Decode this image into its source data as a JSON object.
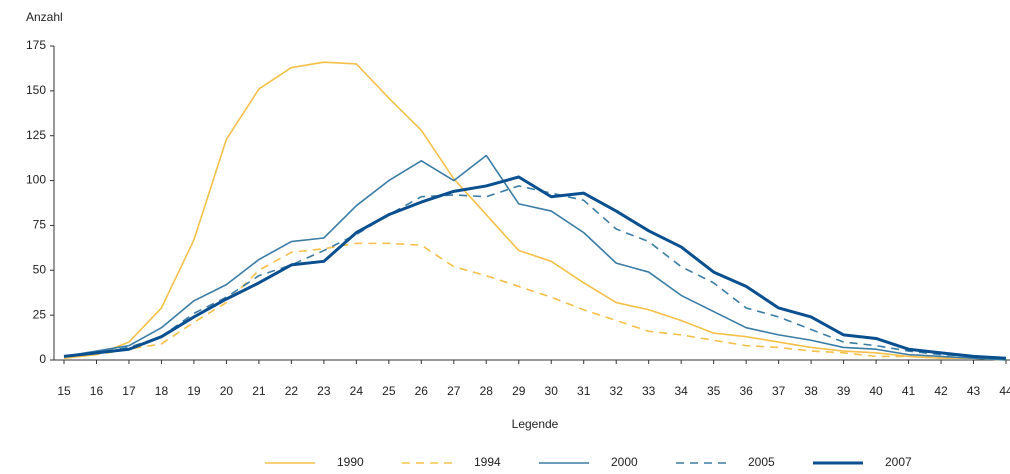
{
  "chart_data": {
    "type": "line",
    "y_label": "Anzahl",
    "x_label": "Legende",
    "categories": [
      "15",
      "16",
      "17",
      "18",
      "19",
      "20",
      "21",
      "22",
      "23",
      "24",
      "25",
      "26",
      "27",
      "28",
      "29",
      "30",
      "31",
      "32",
      "33",
      "34",
      "35",
      "36",
      "37",
      "38",
      "39",
      "40",
      "41",
      "42",
      "43",
      "44"
    ],
    "ylim": [
      0,
      175
    ],
    "yticks": [
      0,
      25,
      50,
      75,
      100,
      125,
      150,
      175
    ],
    "series": [
      {
        "name": "1990",
        "color": "#f5c04a",
        "dashed": false,
        "width": 1.6,
        "values": [
          1,
          3,
          10,
          29,
          67,
          123,
          151,
          163,
          166,
          165,
          146,
          128,
          101,
          81,
          61,
          55,
          43,
          32,
          28,
          22,
          15,
          13,
          10,
          7,
          5,
          4,
          2,
          1,
          1,
          0
        ]
      },
      {
        "name": "1994",
        "color": "#f5c04a",
        "dashed": true,
        "width": 1.6,
        "values": [
          1,
          3,
          6,
          9,
          21,
          32,
          50,
          60,
          62,
          65,
          65,
          64,
          52,
          47,
          41,
          35,
          28,
          22,
          16,
          14,
          11,
          8,
          7,
          5,
          4,
          2,
          2,
          1,
          1,
          0
        ]
      },
      {
        "name": "2000",
        "color": "#3a7ca5",
        "dashed": false,
        "width": 1.6,
        "values": [
          2,
          5,
          8,
          18,
          33,
          42,
          56,
          66,
          68,
          86,
          100,
          111,
          100,
          114,
          87,
          83,
          71,
          54,
          49,
          36,
          27,
          18,
          14,
          11,
          7,
          6,
          3,
          2,
          1,
          0
        ]
      },
      {
        "name": "2005",
        "color": "#3a7ca5",
        "dashed": true,
        "width": 1.6,
        "values": [
          2,
          4,
          7,
          13,
          26,
          35,
          47,
          53,
          61,
          70,
          81,
          91,
          92,
          91,
          97,
          93,
          89,
          73,
          66,
          52,
          43,
          29,
          24,
          17,
          10,
          8,
          5,
          3,
          2,
          1
        ]
      },
      {
        "name": "2007",
        "color": "#0a4f8f",
        "dashed": false,
        "width": 3,
        "values": [
          2,
          4,
          6,
          13,
          24,
          34,
          43,
          53,
          55,
          71,
          81,
          88,
          94,
          97,
          102,
          91,
          93,
          83,
          72,
          63,
          49,
          41,
          29,
          24,
          14,
          12,
          6,
          4,
          2,
          1
        ]
      }
    ]
  }
}
